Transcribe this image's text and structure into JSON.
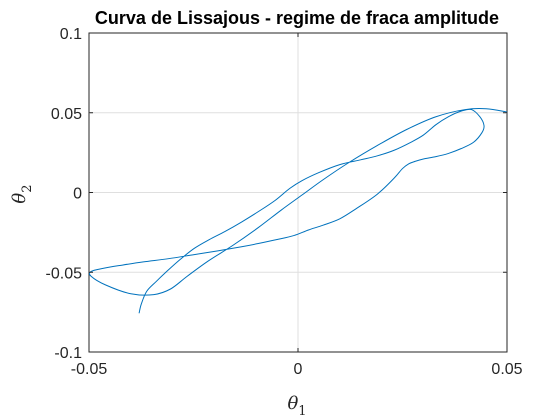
{
  "chart_data": {
    "type": "line",
    "title": "Curva de Lissajous - regime de fraca amplitude",
    "xlabel": {
      "symbol": "θ",
      "subscript": "1"
    },
    "ylabel": {
      "symbol": "θ",
      "subscript": "2"
    },
    "xlim": [
      -0.05,
      0.05
    ],
    "ylim": [
      -0.1,
      0.1
    ],
    "xticks": [
      -0.05,
      0,
      0.05
    ],
    "xtick_labels": [
      "-0.05",
      "0",
      "0.05"
    ],
    "yticks": [
      -0.1,
      -0.05,
      0,
      0.05,
      0.1
    ],
    "ytick_labels": [
      "-0.1",
      "-0.05",
      "0",
      "0.05",
      "0.1"
    ],
    "grid": true,
    "legend": "none",
    "series": [
      {
        "color": "#0072bd",
        "x": [
          -0.038,
          -0.0375,
          -0.0362,
          -0.034,
          -0.0312,
          -0.0282,
          -0.0248,
          -0.0212,
          -0.0175,
          -0.0135,
          -0.0095,
          -0.0055,
          -0.002,
          0.001,
          0.005,
          0.01,
          0.015,
          0.019,
          0.023,
          0.027,
          0.03,
          0.033,
          0.036,
          0.039,
          0.0415,
          0.0435,
          0.0445,
          0.044,
          0.042,
          0.039,
          0.036,
          0.033,
          0.03,
          0.028,
          0.0265,
          0.025,
          0.023,
          0.019,
          0.014,
          0.01,
          0.006,
          0.0025,
          -0.001,
          -0.005,
          -0.0095,
          -0.0135,
          -0.019,
          -0.025,
          -0.031,
          -0.037,
          -0.042,
          -0.0465,
          -0.0495,
          -0.0495,
          -0.046,
          -0.04,
          -0.0345,
          -0.0305,
          -0.0265,
          -0.0215,
          -0.0155,
          -0.0095,
          -0.004,
          0.001,
          0.006,
          0.012,
          0.019,
          0.026,
          0.033,
          0.04,
          0.045,
          0.05
        ],
        "y": [
          -0.0755,
          -0.07,
          -0.062,
          -0.056,
          -0.049,
          -0.042,
          -0.035,
          -0.0295,
          -0.0245,
          -0.0185,
          -0.012,
          -0.005,
          0.0025,
          0.0075,
          0.0125,
          0.0175,
          0.0205,
          0.023,
          0.0265,
          0.0315,
          0.036,
          0.0425,
          0.0475,
          0.051,
          0.052,
          0.0475,
          0.042,
          0.0375,
          0.0315,
          0.0275,
          0.0245,
          0.0225,
          0.021,
          0.0195,
          0.018,
          0.015,
          0.009,
          -0.001,
          -0.01,
          -0.0165,
          -0.0205,
          -0.0235,
          -0.027,
          -0.0295,
          -0.032,
          -0.034,
          -0.0365,
          -0.039,
          -0.0415,
          -0.0435,
          -0.0455,
          -0.0475,
          -0.0495,
          -0.0525,
          -0.058,
          -0.0635,
          -0.064,
          -0.0605,
          -0.0525,
          -0.043,
          -0.033,
          -0.022,
          -0.011,
          -0.0015,
          0.008,
          0.0185,
          0.0295,
          0.0395,
          0.0475,
          0.052,
          0.0525,
          0.0505
        ]
      }
    ]
  }
}
